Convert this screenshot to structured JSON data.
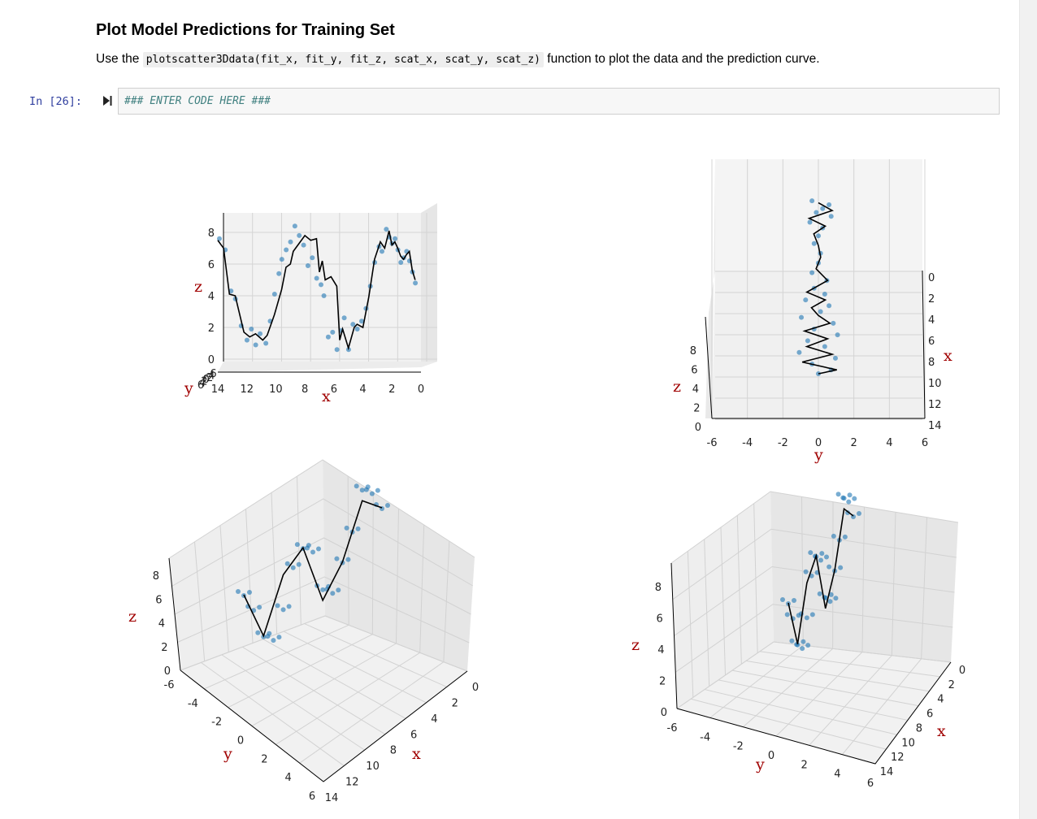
{
  "markdown": {
    "title": "Plot Model Predictions for Training Set",
    "text_before": "Use the ",
    "code": "plotscatter3Ddata(fit_x, fit_y, fit_z, scat_x, scat_y, scat_z)",
    "text_after": " function to plot the data and the prediction curve."
  },
  "cell": {
    "prompt": "In [26]:",
    "code": "### ENTER CODE HERE ###"
  },
  "icons": {
    "run": "run-cell-icon"
  },
  "colors": {
    "scatter": "#1f77b4",
    "curve": "#000000",
    "axis_label": "#a00000",
    "prompt": "#303f9f",
    "comment": "#408080"
  },
  "chart_data": [
    {
      "type": "scatter",
      "title": "3D scatter with prediction curve (front view)",
      "xlabel": "x",
      "ylabel": "y",
      "zlabel": "z",
      "xlim": [
        0,
        14
      ],
      "zlim": [
        0,
        8
      ],
      "x_ticks": [
        "14",
        "12",
        "10",
        "8",
        "6",
        "4",
        "2",
        "0"
      ],
      "z_ticks": [
        "0",
        "2",
        "4",
        "6",
        "8"
      ],
      "y_ticks": [
        "6",
        "4",
        "2",
        "0",
        "-2",
        "-4",
        "-6"
      ],
      "series": [
        {
          "name": "prediction curve",
          "x": [
            14.0,
            13.6,
            13.2,
            12.8,
            12.2,
            11.8,
            11.4,
            10.9,
            10.6,
            10.1,
            9.6,
            9.3,
            9.0,
            8.8,
            8.4,
            8.0,
            7.6,
            7.2,
            7.0,
            6.8,
            6.6,
            6.2,
            5.8,
            5.6,
            5.4,
            5.0,
            4.6,
            4.4,
            4.2,
            4.0,
            3.6,
            3.2,
            2.8,
            2.5,
            2.2,
            2.0,
            1.8,
            1.6,
            1.4,
            1.2,
            1.0,
            0.8,
            0.6,
            0.4
          ],
          "z": [
            7.5,
            7.0,
            4.1,
            4.0,
            1.7,
            1.4,
            1.6,
            1.2,
            1.5,
            2.8,
            4.4,
            5.8,
            6.0,
            6.8,
            7.3,
            7.8,
            7.5,
            7.6,
            5.5,
            6.2,
            5.0,
            5.2,
            4.6,
            1.2,
            1.9,
            0.7,
            2.0,
            2.2,
            2.1,
            2.0,
            3.9,
            6.3,
            7.4,
            7.0,
            8.1,
            7.2,
            7.4,
            7.0,
            6.5,
            6.3,
            6.6,
            6.8,
            5.6,
            5.0
          ]
        },
        {
          "name": "training data",
          "x": [
            14.0,
            13.6,
            13.2,
            12.9,
            12.5,
            12.1,
            11.8,
            11.5,
            11.2,
            10.8,
            10.5,
            10.2,
            9.9,
            9.7,
            9.4,
            9.1,
            8.8,
            8.5,
            8.2,
            7.9,
            7.6,
            7.3,
            7.0,
            6.8,
            6.5,
            6.2,
            5.9,
            5.6,
            5.4,
            5.1,
            4.8,
            4.5,
            4.2,
            3.9,
            3.6,
            3.3,
            3.0,
            2.8,
            2.5,
            2.3,
            2.1,
            1.9,
            1.7,
            1.5,
            1.3,
            1.1,
            0.9,
            0.7,
            0.5
          ],
          "z": [
            7.6,
            6.9,
            4.3,
            3.8,
            2.1,
            1.2,
            1.9,
            0.9,
            1.6,
            1.0,
            2.4,
            4.1,
            5.4,
            6.3,
            6.9,
            7.4,
            8.4,
            7.8,
            7.2,
            5.9,
            6.4,
            5.1,
            4.7,
            4.0,
            1.4,
            1.7,
            0.6,
            1.8,
            2.6,
            0.6,
            2.2,
            1.9,
            2.4,
            3.2,
            4.6,
            6.1,
            7.1,
            6.8,
            8.2,
            7.7,
            7.3,
            7.6,
            6.9,
            6.1,
            6.4,
            6.8,
            6.2,
            5.5,
            4.8
          ]
        }
      ]
    },
    {
      "type": "scatter",
      "title": "3D scatter with prediction curve (top view)",
      "xlabel": "x",
      "ylabel": "y",
      "zlabel": "z",
      "xlim": [
        0,
        14
      ],
      "ylim": [
        -6,
        6
      ],
      "zlim": [
        0,
        8
      ],
      "x_ticks": [
        "0",
        "2",
        "4",
        "6",
        "8",
        "10",
        "12",
        "14"
      ],
      "y_ticks": [
        "-6",
        "-4",
        "-2",
        "0",
        "2",
        "4",
        "6"
      ],
      "z_ticks": [
        "0",
        "2",
        "4",
        "6",
        "8"
      ],
      "series": [
        {
          "name": "prediction curve",
          "x": [
            0.4,
            0.8,
            1.2,
            1.6,
            2.0,
            2.6,
            3.2,
            3.8,
            4.4,
            5.0,
            5.4,
            5.8,
            6.2,
            6.6,
            7.0,
            7.4,
            7.8,
            8.2,
            8.6,
            9.0,
            9.2
          ],
          "y": [
            0.0,
            0.6,
            -0.4,
            0.3,
            -0.2,
            0.0,
            0.1,
            -0.1,
            0.4,
            -0.5,
            0.3,
            -0.3,
            0.0,
            0.5,
            -0.6,
            0.4,
            -0.5,
            0.6,
            -0.7,
            0.8,
            0.0
          ]
        },
        {
          "name": "training data",
          "x": [
            0.3,
            0.5,
            0.7,
            0.9,
            1.1,
            1.4,
            1.7,
            2.1,
            2.5,
            3.0,
            3.5,
            4.0,
            4.4,
            4.8,
            5.1,
            5.4,
            5.7,
            6.0,
            6.3,
            6.6,
            6.9,
            7.2,
            7.5,
            7.8,
            8.1,
            8.4,
            8.7,
            9.0,
            9.2
          ],
          "y": [
            -0.3,
            0.5,
            0.2,
            -0.1,
            0.6,
            -0.4,
            0.2,
            0.0,
            -0.2,
            0.1,
            0.0,
            -0.3,
            0.4,
            -0.2,
            0.3,
            -0.6,
            0.5,
            0.1,
            -0.8,
            0.7,
            -0.2,
            0.9,
            -0.5,
            0.3,
            -0.9,
            0.8,
            -0.3,
            0.6,
            0.0
          ]
        }
      ]
    },
    {
      "type": "scatter",
      "title": "3D scatter with prediction curve (isometric view)",
      "xlabel": "x",
      "ylabel": "y",
      "zlabel": "z",
      "x_ticks": [
        "0",
        "2",
        "4",
        "6",
        "8",
        "10",
        "12",
        "14"
      ],
      "y_ticks": [
        "-6",
        "-4",
        "-2",
        "0",
        "2",
        "4",
        "6"
      ],
      "z_ticks": [
        "0",
        "2",
        "4",
        "6",
        "8"
      ],
      "series": [
        {
          "name": "prediction curve",
          "x": [
            14,
            12,
            10,
            8,
            6,
            4,
            2,
            0
          ],
          "z": [
            7,
            2,
            6,
            7,
            1,
            3,
            7,
            5
          ]
        },
        {
          "name": "training data",
          "x": [
            14,
            13,
            12,
            11,
            10,
            9,
            8,
            7,
            6,
            5,
            4,
            3,
            2,
            1,
            0
          ],
          "z": [
            7,
            5,
            2,
            1,
            3,
            6,
            7,
            6,
            2,
            1,
            3,
            5,
            8,
            7,
            5
          ]
        }
      ]
    },
    {
      "type": "scatter",
      "title": "3D scatter with prediction curve (rotated view)",
      "xlabel": "x",
      "ylabel": "y",
      "zlabel": "z",
      "x_ticks": [
        "0",
        "2",
        "4",
        "6",
        "8",
        "10",
        "12",
        "14"
      ],
      "y_ticks": [
        "-6",
        "-4",
        "-2",
        "0",
        "2",
        "4",
        "6"
      ],
      "z_ticks": [
        "0",
        "2",
        "4",
        "6",
        "8"
      ],
      "series": [
        {
          "name": "prediction curve",
          "x": [
            14,
            12,
            10,
            8,
            6,
            4,
            2,
            0
          ],
          "z": [
            7,
            2,
            6,
            7,
            1,
            3,
            7,
            5
          ]
        },
        {
          "name": "training data",
          "x": [
            14,
            13,
            12,
            11,
            10,
            9,
            8,
            7,
            6,
            5,
            4,
            3,
            2,
            1,
            0
          ],
          "z": [
            7,
            5,
            2,
            1,
            3,
            6,
            7,
            6,
            2,
            1,
            3,
            5,
            8,
            7,
            5
          ]
        }
      ]
    }
  ]
}
